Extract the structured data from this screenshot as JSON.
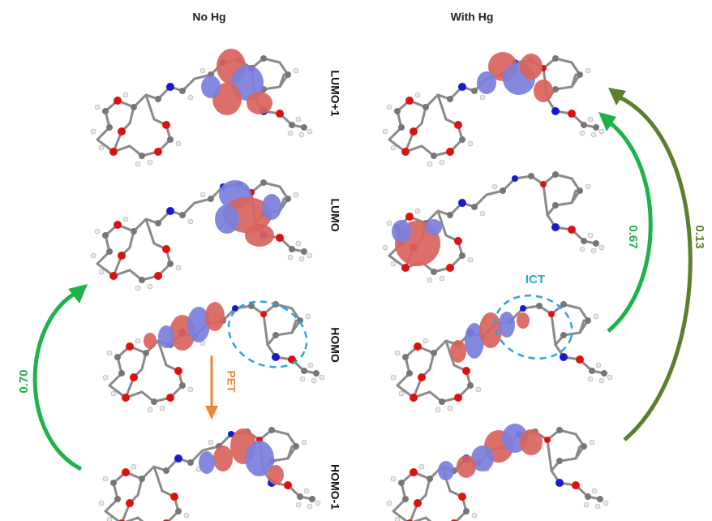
{
  "columns": [
    {
      "title": "No Hg"
    },
    {
      "title": "With Hg"
    }
  ],
  "orbitals": [
    "LUMO+1",
    "LUMO",
    "HOMO",
    "HOMO-1"
  ],
  "transitions": [
    {
      "label": "0.70"
    },
    {
      "label": "0.67"
    },
    {
      "label": "0.13"
    }
  ],
  "annotations": {
    "pet": "PET",
    "ict": "ICT"
  }
}
